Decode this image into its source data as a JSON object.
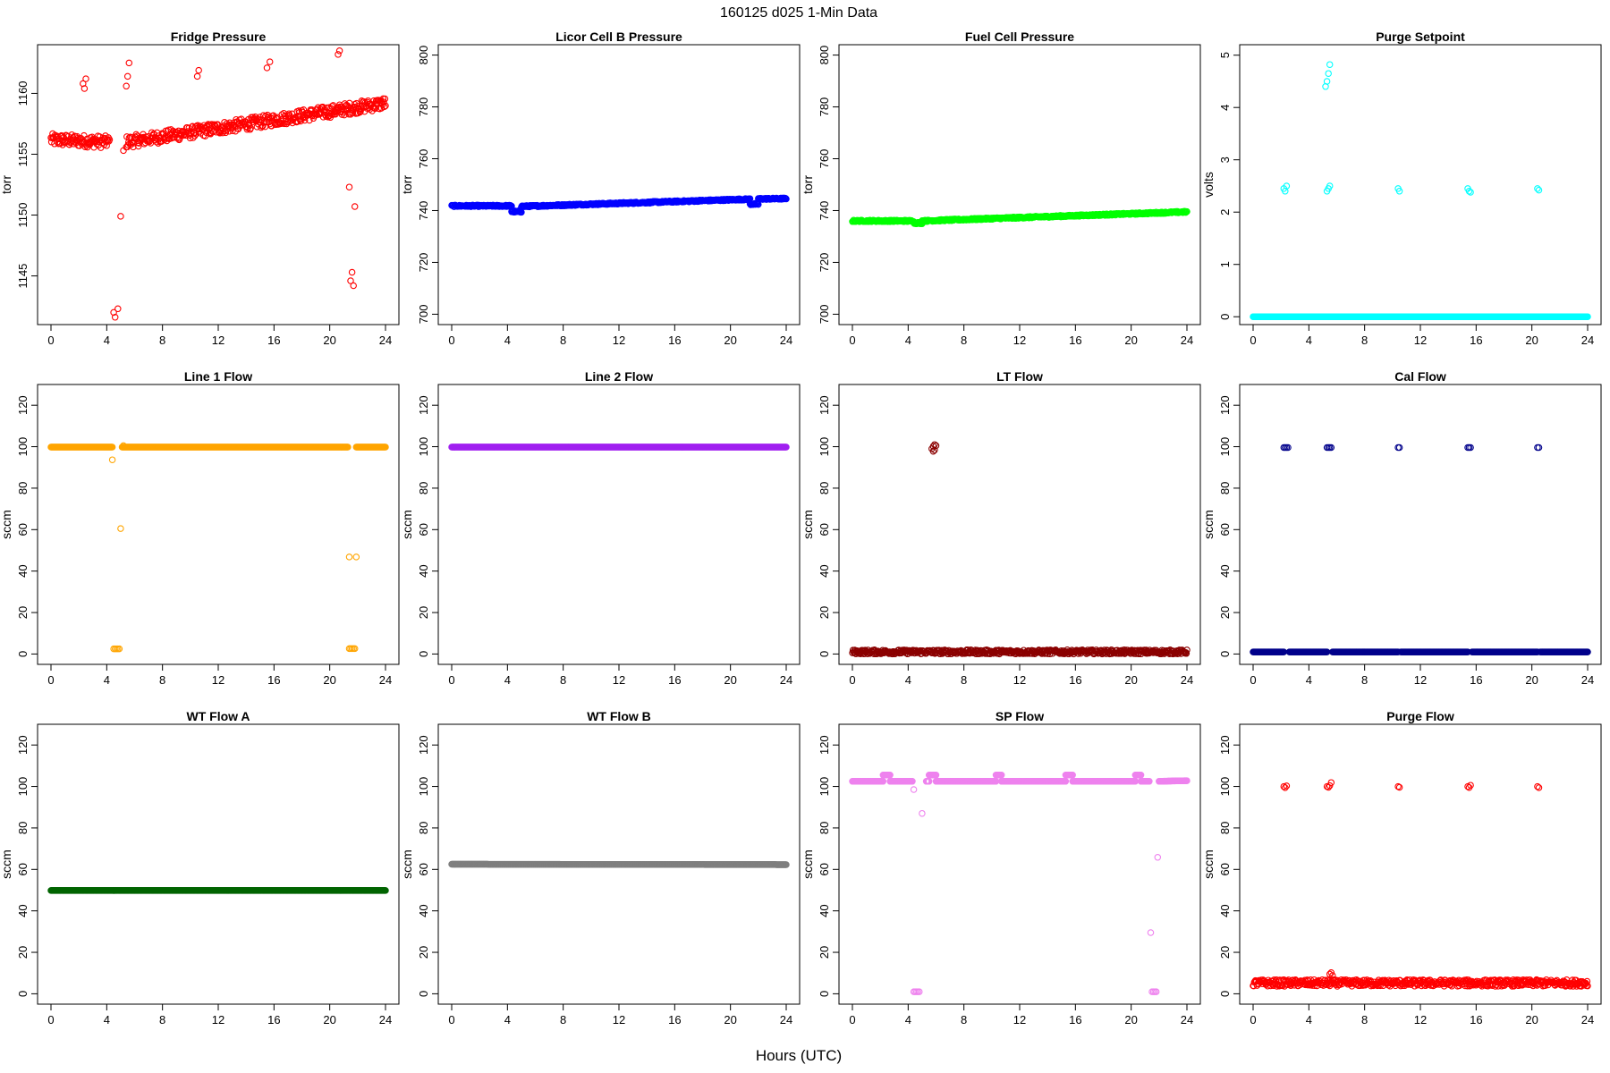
{
  "figure": {
    "title": "160125   d025   1-Min Data",
    "xlabel": "Hours (UTC)"
  },
  "chart_data": [
    {
      "type": "scatter",
      "title": "Fridge Pressure",
      "ylabel": "torr",
      "color": "#ff0000",
      "xlim": [
        0,
        24
      ],
      "ylim": [
        1141,
        1164
      ],
      "xticks": [
        0,
        4,
        8,
        12,
        16,
        20,
        24
      ],
      "yticks": [
        1145,
        1150,
        1155,
        1160
      ],
      "series": [
        {
          "name": "baseline",
          "segments": [
            [
              0,
              1156.2,
              4.2,
              1156.0
            ],
            [
              5.4,
              1156.0,
              24,
              1159.2
            ]
          ],
          "noise": 0.5
        },
        {
          "name": "excursions",
          "points": [
            [
              2.3,
              1160.8
            ],
            [
              2.4,
              1160.4
            ],
            [
              2.5,
              1161.2
            ],
            [
              5.4,
              1160.6
            ],
            [
              5.5,
              1161.4
            ],
            [
              5.6,
              1162.5
            ],
            [
              10.5,
              1161.4
            ],
            [
              10.6,
              1161.9
            ],
            [
              15.5,
              1162.1
            ],
            [
              15.7,
              1162.6
            ],
            [
              20.6,
              1163.2
            ],
            [
              20.7,
              1163.5
            ],
            [
              4.5,
              1142.0
            ],
            [
              4.6,
              1141.6
            ],
            [
              4.8,
              1142.3
            ],
            [
              5.0,
              1149.9
            ],
            [
              5.2,
              1155.3
            ],
            [
              21.5,
              1144.6
            ],
            [
              21.6,
              1145.3
            ],
            [
              21.7,
              1144.2
            ],
            [
              21.4,
              1152.3
            ],
            [
              21.8,
              1150.7
            ]
          ]
        }
      ]
    },
    {
      "type": "scatter",
      "title": "Licor Cell B Pressure",
      "ylabel": "torr",
      "color": "#0000ff",
      "xlim": [
        0,
        24
      ],
      "ylim": [
        696,
        804
      ],
      "xticks": [
        0,
        4,
        8,
        12,
        16,
        20,
        24
      ],
      "yticks": [
        700,
        720,
        740,
        760,
        780,
        800
      ],
      "series": [
        {
          "name": "baseline",
          "segments": [
            [
              0,
              741.8,
              4.3,
              741.8
            ],
            [
              4.3,
              739.6,
              5.0,
              739.6
            ],
            [
              5.0,
              741.6,
              21.4,
              744.4
            ],
            [
              21.4,
              742.5,
              22.0,
              742.5
            ],
            [
              22.0,
              744.5,
              24,
              744.6
            ]
          ],
          "noise": 0.3
        }
      ]
    },
    {
      "type": "scatter",
      "title": "Fuel Cell Pressure",
      "ylabel": "torr",
      "color": "#00ff00",
      "xlim": [
        0,
        24
      ],
      "ylim": [
        696,
        804
      ],
      "xticks": [
        0,
        4,
        8,
        12,
        16,
        20,
        24
      ],
      "yticks": [
        700,
        720,
        740,
        760,
        780,
        800
      ],
      "series": [
        {
          "name": "baseline",
          "segments": [
            [
              0,
              736.0,
              4.4,
              736.0
            ],
            [
              4.4,
              735.2,
              5.0,
              735.2
            ],
            [
              5.0,
              736.0,
              24,
              739.5
            ]
          ],
          "noise": 0.3
        }
      ]
    },
    {
      "type": "scatter",
      "title": "Purge Setpoint",
      "ylabel": "volts",
      "color": "#00ffff",
      "xlim": [
        0,
        24
      ],
      "ylim": [
        -0.15,
        5.2
      ],
      "xticks": [
        0,
        4,
        8,
        12,
        16,
        20,
        24
      ],
      "yticks": [
        0,
        1,
        2,
        3,
        4,
        5
      ],
      "series": [
        {
          "name": "baseline",
          "segments": [
            [
              0,
              0,
              24,
              0
            ]
          ],
          "noise": 0
        },
        {
          "name": "excursions",
          "points": [
            [
              2.2,
              2.45
            ],
            [
              2.3,
              2.4
            ],
            [
              2.4,
              2.5
            ],
            [
              5.3,
              2.4
            ],
            [
              5.4,
              2.45
            ],
            [
              5.5,
              2.5
            ],
            [
              5.2,
              4.4
            ],
            [
              5.3,
              4.5
            ],
            [
              5.4,
              4.65
            ],
            [
              5.5,
              4.82
            ],
            [
              10.4,
              2.45
            ],
            [
              10.5,
              2.4
            ],
            [
              15.4,
              2.45
            ],
            [
              15.5,
              2.4
            ],
            [
              15.6,
              2.38
            ],
            [
              20.4,
              2.45
            ],
            [
              20.5,
              2.42
            ]
          ]
        }
      ]
    },
    {
      "type": "scatter",
      "title": "Line 1 Flow",
      "ylabel": "sccm",
      "color": "#ffa500",
      "xlim": [
        0,
        24
      ],
      "ylim": [
        -5,
        130
      ],
      "xticks": [
        0,
        4,
        8,
        12,
        16,
        20,
        24
      ],
      "yticks": [
        0,
        20,
        40,
        60,
        80,
        100,
        120
      ],
      "series": [
        {
          "name": "baseline",
          "segments": [
            [
              0,
              99.8,
              4.4,
              99.8
            ],
            [
              5.1,
              99.8,
              21.3,
              99.8
            ],
            [
              21.9,
              99.8,
              24,
              99.8
            ]
          ],
          "noise": 0
        },
        {
          "name": "excursions",
          "points": [
            [
              4.4,
              93.7
            ],
            [
              5.0,
              60.5
            ],
            [
              5.2,
              100.5
            ],
            [
              4.5,
              2.5
            ],
            [
              4.6,
              2.5
            ],
            [
              4.7,
              2.5
            ],
            [
              4.8,
              2.5
            ],
            [
              4.9,
              2.5
            ],
            [
              21.4,
              2.6
            ],
            [
              21.5,
              2.6
            ],
            [
              21.6,
              2.6
            ],
            [
              21.7,
              2.6
            ],
            [
              21.8,
              2.6
            ],
            [
              21.4,
              46.8
            ],
            [
              21.9,
              46.8
            ]
          ]
        }
      ]
    },
    {
      "type": "scatter",
      "title": "Line 2 Flow",
      "ylabel": "sccm",
      "color": "#a020f0",
      "xlim": [
        0,
        24
      ],
      "ylim": [
        -5,
        130
      ],
      "xticks": [
        0,
        4,
        8,
        12,
        16,
        20,
        24
      ],
      "yticks": [
        0,
        20,
        40,
        60,
        80,
        100,
        120
      ],
      "series": [
        {
          "name": "baseline",
          "segments": [
            [
              0,
              99.8,
              24,
              99.8
            ]
          ],
          "noise": 0
        }
      ]
    },
    {
      "type": "scatter",
      "title": "LT Flow",
      "ylabel": "sccm",
      "color": "#8b0000",
      "xlim": [
        0,
        24
      ],
      "ylim": [
        -5,
        130
      ],
      "xticks": [
        0,
        4,
        8,
        12,
        16,
        20,
        24
      ],
      "yticks": [
        0,
        20,
        40,
        60,
        80,
        100,
        120
      ],
      "series": [
        {
          "name": "baseline",
          "segments": [
            [
              0,
              1.0,
              24,
              1.0
            ]
          ],
          "noise": 1.0
        },
        {
          "name": "excursions",
          "points": [
            [
              5.7,
              99.0
            ],
            [
              5.8,
              100.2
            ],
            [
              5.9,
              98.4
            ],
            [
              6.0,
              100.5
            ],
            [
              5.8,
              97.8
            ],
            [
              5.9,
              101.0
            ]
          ]
        }
      ]
    },
    {
      "type": "scatter",
      "title": "Cal Flow",
      "ylabel": "sccm",
      "color": "#00008b",
      "xlim": [
        0,
        24
      ],
      "ylim": [
        -5,
        130
      ],
      "xticks": [
        0,
        4,
        8,
        12,
        16,
        20,
        24
      ],
      "yticks": [
        0,
        20,
        40,
        60,
        80,
        100,
        120
      ],
      "series": [
        {
          "name": "baseline",
          "segments": [
            [
              0,
              1.0,
              2.2,
              1.0
            ],
            [
              2.6,
              1.0,
              5.3,
              1.0
            ],
            [
              5.7,
              1.0,
              10.4,
              1.0
            ],
            [
              10.6,
              1.0,
              15.4,
              1.0
            ],
            [
              15.7,
              1.0,
              20.4,
              1.0
            ],
            [
              20.6,
              1.0,
              24,
              1.0
            ]
          ],
          "noise": 0
        },
        {
          "name": "excursions",
          "points": [
            [
              2.2,
              99.6
            ],
            [
              2.3,
              99.6
            ],
            [
              2.4,
              99.6
            ],
            [
              2.5,
              99.6
            ],
            [
              5.3,
              99.6
            ],
            [
              5.4,
              99.6
            ],
            [
              5.5,
              99.6
            ],
            [
              5.6,
              99.6
            ],
            [
              10.4,
              99.6
            ],
            [
              10.5,
              99.6
            ],
            [
              15.4,
              99.6
            ],
            [
              15.5,
              99.6
            ],
            [
              15.6,
              99.6
            ],
            [
              20.4,
              99.6
            ],
            [
              20.5,
              99.6
            ]
          ]
        }
      ]
    },
    {
      "type": "scatter",
      "title": "WT Flow A",
      "ylabel": "sccm",
      "color": "#006400",
      "xlim": [
        0,
        24
      ],
      "ylim": [
        -5,
        130
      ],
      "xticks": [
        0,
        4,
        8,
        12,
        16,
        20,
        24
      ],
      "yticks": [
        0,
        20,
        40,
        60,
        80,
        100,
        120
      ],
      "series": [
        {
          "name": "baseline",
          "segments": [
            [
              0,
              49.8,
              24,
              49.8
            ]
          ],
          "noise": 0
        }
      ]
    },
    {
      "type": "scatter",
      "title": "WT Flow B",
      "ylabel": "sccm",
      "color": "#7f7f7f",
      "xlim": [
        0,
        24
      ],
      "ylim": [
        -5,
        130
      ],
      "xticks": [
        0,
        4,
        8,
        12,
        16,
        20,
        24
      ],
      "yticks": [
        0,
        20,
        40,
        60,
        80,
        100,
        120
      ],
      "series": [
        {
          "name": "baseline",
          "segments": [
            [
              0,
              62.5,
              24,
              62.3
            ]
          ],
          "noise": 0
        }
      ]
    },
    {
      "type": "scatter",
      "title": "SP Flow",
      "ylabel": "sccm",
      "color": "#ee82ee",
      "xlim": [
        0,
        24
      ],
      "ylim": [
        -5,
        130
      ],
      "xticks": [
        0,
        4,
        8,
        12,
        16,
        20,
        24
      ],
      "yticks": [
        0,
        20,
        40,
        60,
        80,
        100,
        120
      ],
      "series": [
        {
          "name": "baseline",
          "segments": [
            [
              0,
              102.5,
              2.2,
              102.5
            ],
            [
              2.2,
              105.5,
              2.7,
              105.5
            ],
            [
              2.7,
              102.5,
              4.3,
              102.5
            ],
            [
              5.3,
              102.5,
              5.5,
              102.5
            ],
            [
              5.5,
              105.5,
              6.0,
              105.5
            ],
            [
              6.0,
              102.5,
              10.3,
              102.5
            ],
            [
              10.3,
              105.5,
              10.7,
              105.5
            ],
            [
              10.7,
              102.5,
              15.3,
              102.5
            ],
            [
              15.3,
              105.5,
              15.8,
              105.5
            ],
            [
              15.8,
              102.5,
              20.3,
              102.5
            ],
            [
              20.3,
              105.5,
              20.7,
              105.5
            ],
            [
              20.7,
              102.5,
              21.3,
              102.5
            ],
            [
              22.0,
              102.5,
              24,
              102.8
            ]
          ],
          "noise": 0
        },
        {
          "name": "excursions",
          "points": [
            [
              4.4,
              98.5
            ],
            [
              5.0,
              87.0
            ],
            [
              4.4,
              1.0
            ],
            [
              4.5,
              1.0
            ],
            [
              4.6,
              1.0
            ],
            [
              4.7,
              1.0
            ],
            [
              4.8,
              1.0
            ],
            [
              21.5,
              1.0
            ],
            [
              21.6,
              1.0
            ],
            [
              21.7,
              1.0
            ],
            [
              21.8,
              1.0
            ],
            [
              21.4,
              29.5
            ],
            [
              21.9,
              65.8
            ]
          ]
        }
      ]
    },
    {
      "type": "scatter",
      "title": "Purge Flow",
      "ylabel": "sccm",
      "color": "#ff0000",
      "xlim": [
        0,
        24
      ],
      "ylim": [
        -5,
        130
      ],
      "xticks": [
        0,
        4,
        8,
        12,
        16,
        20,
        24
      ],
      "yticks": [
        0,
        20,
        40,
        60,
        80,
        100,
        120
      ],
      "series": [
        {
          "name": "baseline",
          "segments": [
            [
              0,
              5.2,
              24,
              5.2
            ]
          ],
          "noise": 1.6
        },
        {
          "name": "excursions",
          "points": [
            [
              2.2,
              100.0
            ],
            [
              2.3,
              99.4
            ],
            [
              2.4,
              100.3
            ],
            [
              5.3,
              100.0
            ],
            [
              5.4,
              99.6
            ],
            [
              5.5,
              100.4
            ],
            [
              5.6,
              101.9
            ],
            [
              10.4,
              100.0
            ],
            [
              10.5,
              99.6
            ],
            [
              15.4,
              100.0
            ],
            [
              15.5,
              99.5
            ],
            [
              15.6,
              100.6
            ],
            [
              20.4,
              100.0
            ],
            [
              20.5,
              99.4
            ],
            [
              5.5,
              9.5
            ],
            [
              5.6,
              10.2
            ],
            [
              5.7,
              8.8
            ]
          ]
        }
      ]
    }
  ]
}
